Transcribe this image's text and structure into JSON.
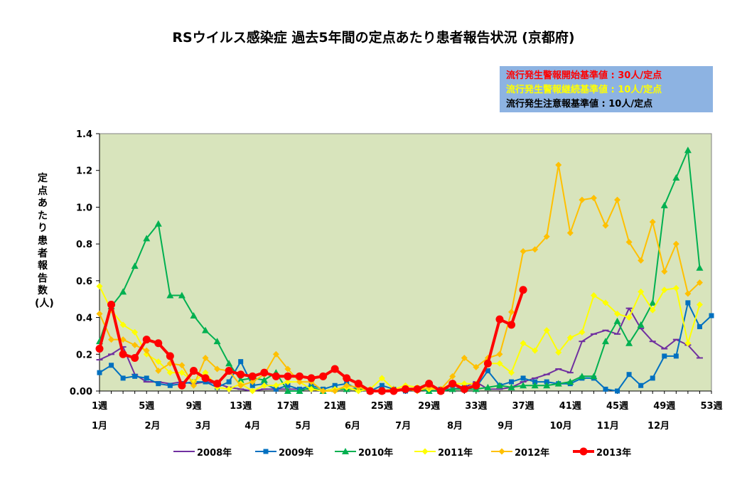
{
  "chart_data": {
    "type": "line",
    "title": "RSウイルス感染症 過去5年間の定点あたり患者報告状況 (京都府)",
    "ylabel": "定点あたり患者報告数(人)",
    "ylim": [
      0,
      1.4
    ],
    "yticks": [
      "0.00",
      "0.2",
      "0.4",
      "0.6",
      "0.8",
      "1.0",
      "1.2",
      "1.4"
    ],
    "xlim": [
      1,
      53
    ],
    "week_ticks": [
      "1週",
      "5週",
      "9週",
      "13週",
      "17週",
      "21週",
      "25週",
      "29週",
      "33週",
      "37週",
      "41週",
      "45週",
      "49週",
      "53週"
    ],
    "month_labels": [
      {
        "label": "1月",
        "week": 1
      },
      {
        "label": "2月",
        "week": 5.5
      },
      {
        "label": "3月",
        "week": 9.8
      },
      {
        "label": "4月",
        "week": 14
      },
      {
        "label": "5月",
        "week": 18.3
      },
      {
        "label": "6月",
        "week": 22.5
      },
      {
        "label": "7月",
        "week": 26.8
      },
      {
        "label": "8月",
        "week": 31.2
      },
      {
        "label": "9月",
        "week": 35.5
      },
      {
        "label": "10月",
        "week": 40.2
      },
      {
        "label": "11月",
        "week": 44.2
      },
      {
        "label": "12月",
        "week": 48.5
      }
    ],
    "grid": false,
    "background": "#d8e4bc",
    "legend_position": "bottom",
    "series": [
      {
        "name": "2008年",
        "color": "#7030a0",
        "marker": "dash",
        "width": 2,
        "values": [
          0.17,
          0.2,
          0.24,
          0.09,
          0.05,
          0.05,
          0.04,
          0.05,
          0.04,
          0.05,
          0.04,
          0.02,
          0.01,
          0.0,
          0.01,
          0.01,
          0.01,
          0.01,
          0.01,
          0.0,
          0.01,
          0.01,
          0.01,
          0.0,
          0.0,
          0.0,
          0.01,
          0.01,
          0.0,
          0.01,
          0.01,
          0.02,
          0.05,
          0.01,
          0.01,
          0.02,
          0.05,
          0.07,
          0.09,
          0.12,
          0.1,
          0.27,
          0.31,
          0.33,
          0.31,
          0.45,
          0.34,
          0.27,
          0.23,
          0.28,
          0.25,
          0.18
        ]
      },
      {
        "name": "2009年",
        "color": "#0070c0",
        "marker": "square",
        "width": 2,
        "values": [
          0.1,
          0.14,
          0.07,
          0.08,
          0.07,
          0.04,
          0.03,
          0.04,
          0.05,
          0.05,
          0.02,
          0.05,
          0.16,
          0.03,
          0.04,
          0.01,
          0.03,
          0.01,
          0.03,
          0.01,
          0.03,
          0.04,
          0.01,
          0.0,
          0.03,
          0.01,
          0.0,
          0.01,
          0.01,
          0.01,
          0.03,
          0.02,
          0.02,
          0.11,
          0.03,
          0.05,
          0.07,
          0.05,
          0.05,
          0.04,
          0.04,
          0.07,
          0.07,
          0.01,
          0.0,
          0.09,
          0.03,
          0.07,
          0.19,
          0.19,
          0.48,
          0.35,
          0.41
        ]
      },
      {
        "name": "2010年",
        "color": "#00b050",
        "marker": "triangle",
        "width": 2,
        "values": [
          0.27,
          0.46,
          0.54,
          0.68,
          0.83,
          0.91,
          0.52,
          0.52,
          0.41,
          0.33,
          0.27,
          0.15,
          0.06,
          0.07,
          0.06,
          0.1,
          0.0,
          0.0,
          0.02,
          0.0,
          0.01,
          0.01,
          0.01,
          0.0,
          0.0,
          0.01,
          0.01,
          0.01,
          0.0,
          0.0,
          0.01,
          0.01,
          0.01,
          0.02,
          0.03,
          0.02,
          0.03,
          0.03,
          0.03,
          0.04,
          0.05,
          0.08,
          0.08,
          0.27,
          0.38,
          0.26,
          0.36,
          0.48,
          1.01,
          1.16,
          1.31,
          0.67
        ]
      },
      {
        "name": "2011年",
        "color": "#ffff00",
        "marker": "diamond",
        "width": 2,
        "values": [
          0.57,
          0.44,
          0.36,
          0.32,
          0.2,
          0.16,
          0.1,
          0.1,
          0.05,
          0.1,
          0.02,
          0.01,
          0.04,
          0.0,
          0.03,
          0.03,
          0.05,
          0.05,
          0.01,
          0.0,
          0.01,
          0.02,
          0.0,
          0.01,
          0.07,
          0.01,
          0.03,
          0.02,
          0.01,
          0.01,
          0.04,
          0.04,
          0.04,
          0.15,
          0.15,
          0.1,
          0.26,
          0.22,
          0.33,
          0.21,
          0.29,
          0.32,
          0.52,
          0.48,
          0.42,
          0.4,
          0.54,
          0.44,
          0.55,
          0.56,
          0.26,
          0.47
        ]
      },
      {
        "name": "2012年",
        "color": "#ffc000",
        "marker": "diamond",
        "width": 2,
        "values": [
          0.42,
          0.28,
          0.28,
          0.25,
          0.22,
          0.11,
          0.15,
          0.14,
          0.03,
          0.18,
          0.12,
          0.11,
          0.03,
          0.05,
          0.09,
          0.2,
          0.12,
          0.05,
          0.05,
          0.0,
          0.0,
          0.03,
          0.02,
          0.0,
          0.0,
          0.01,
          0.01,
          0.0,
          0.02,
          0.01,
          0.08,
          0.18,
          0.13,
          0.18,
          0.2,
          0.43,
          0.76,
          0.77,
          0.84,
          1.23,
          0.86,
          1.04,
          1.05,
          0.9,
          1.04,
          0.81,
          0.71,
          0.92,
          0.65,
          0.8,
          0.53,
          0.59
        ]
      },
      {
        "name": "2013年",
        "color": "#ff0000",
        "marker": "circle",
        "width": 4,
        "values": [
          0.23,
          0.47,
          0.2,
          0.18,
          0.28,
          0.26,
          0.19,
          0.03,
          0.11,
          0.07,
          0.04,
          0.11,
          0.09,
          0.08,
          0.1,
          0.08,
          0.08,
          0.08,
          0.07,
          0.08,
          0.12,
          0.07,
          0.04,
          0.0,
          0.0,
          0.0,
          0.01,
          0.01,
          0.04,
          0.0,
          0.04,
          0.01,
          0.03,
          0.15,
          0.39,
          0.36,
          0.55
        ]
      }
    ]
  },
  "criteria": [
    {
      "text": "流行発生警報開始基準値 : 30人/定点",
      "color": "#ff0000"
    },
    {
      "text": "流行発生警報継続基準値 : 10人/定点",
      "color": "#ffff00"
    },
    {
      "text": "流行発生注意報基準値 : 10人/定点",
      "color": "#000000"
    }
  ]
}
